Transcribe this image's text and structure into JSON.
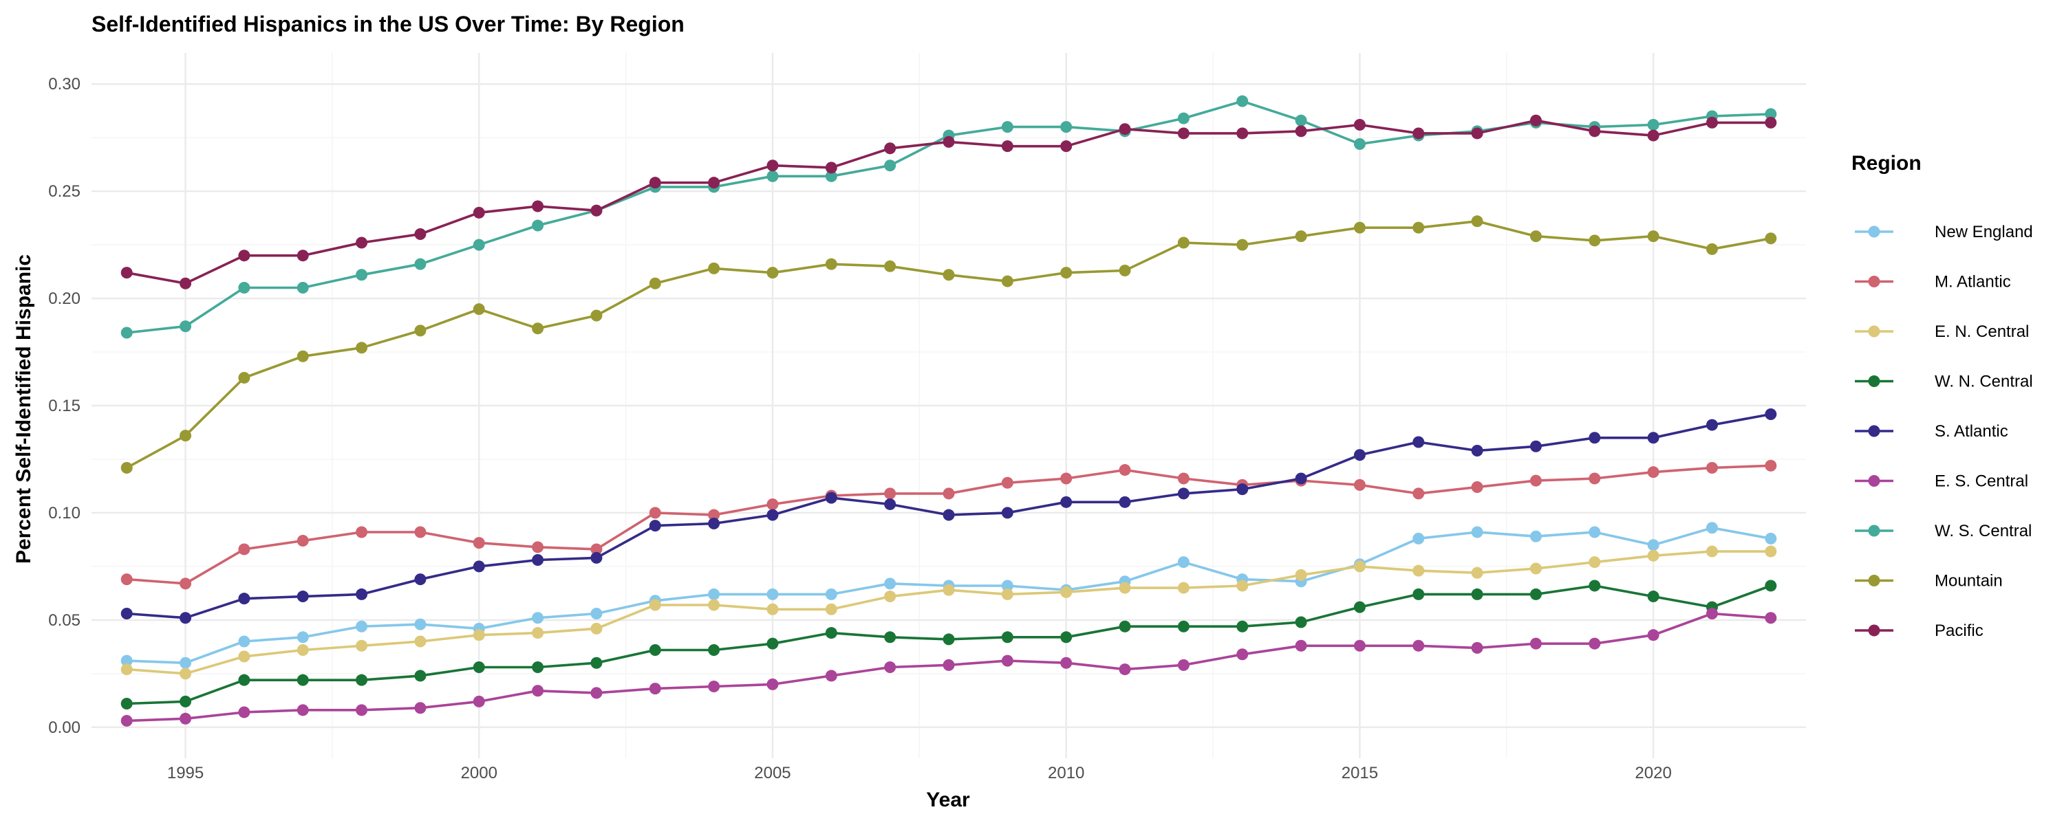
{
  "chart_data": {
    "type": "line",
    "title": "Self-Identified Hispanics in the US Over Time: By Region",
    "xlabel": "Year",
    "ylabel": "Percent Self-Identified Hispanic",
    "xlim": [
      1993.4,
      2022.6
    ],
    "ylim": [
      -0.0145,
      0.3145
    ],
    "x_ticks": [
      1995,
      2000,
      2005,
      2010,
      2015,
      2020
    ],
    "y_ticks": [
      0.0,
      0.05,
      0.1,
      0.15,
      0.2,
      0.25,
      0.3
    ],
    "y_tick_labels": [
      "0.00",
      "0.05",
      "0.10",
      "0.15",
      "0.20",
      "0.25",
      "0.30"
    ],
    "grid": true,
    "legend": {
      "title": "Region",
      "position": "right"
    },
    "x": [
      1994,
      1995,
      1996,
      1997,
      1998,
      1999,
      2000,
      2001,
      2002,
      2003,
      2004,
      2005,
      2006,
      2007,
      2008,
      2009,
      2010,
      2011,
      2012,
      2013,
      2014,
      2015,
      2016,
      2017,
      2018,
      2019,
      2020,
      2021,
      2022
    ],
    "series": [
      {
        "name": "New England",
        "color": "#85C7EA",
        "values": [
          0.031,
          0.03,
          0.04,
          0.042,
          0.047,
          0.048,
          0.046,
          0.051,
          0.053,
          0.059,
          0.062,
          0.062,
          0.062,
          0.067,
          0.066,
          0.066,
          0.064,
          0.068,
          0.077,
          0.069,
          0.068,
          0.076,
          0.088,
          0.091,
          0.089,
          0.091,
          0.085,
          0.093,
          0.088
        ]
      },
      {
        "name": "M. Atlantic",
        "color": "#CF6370",
        "values": [
          0.069,
          0.067,
          0.083,
          0.087,
          0.091,
          0.091,
          0.086,
          0.084,
          0.083,
          0.1,
          0.099,
          0.104,
          0.108,
          0.109,
          0.109,
          0.114,
          0.116,
          0.12,
          0.116,
          0.113,
          0.115,
          0.113,
          0.109,
          0.112,
          0.115,
          0.116,
          0.119,
          0.121,
          0.122
        ]
      },
      {
        "name": "E. N. Central",
        "color": "#DCC878",
        "values": [
          0.027,
          0.025,
          0.033,
          0.036,
          0.038,
          0.04,
          0.043,
          0.044,
          0.046,
          0.057,
          0.057,
          0.055,
          0.055,
          0.061,
          0.064,
          0.062,
          0.063,
          0.065,
          0.065,
          0.066,
          0.071,
          0.075,
          0.073,
          0.072,
          0.074,
          0.077,
          0.08,
          0.082,
          0.082
        ]
      },
      {
        "name": "W. N. Central",
        "color": "#197536",
        "values": [
          0.011,
          0.012,
          0.022,
          0.022,
          0.022,
          0.024,
          0.028,
          0.028,
          0.03,
          0.036,
          0.036,
          0.039,
          0.044,
          0.042,
          0.041,
          0.042,
          0.042,
          0.047,
          0.047,
          0.047,
          0.049,
          0.056,
          0.062,
          0.062,
          0.062,
          0.066,
          0.061,
          0.056,
          0.066
        ]
      },
      {
        "name": "S. Atlantic",
        "color": "#342B88",
        "values": [
          0.053,
          0.051,
          0.06,
          0.061,
          0.062,
          0.069,
          0.075,
          0.078,
          0.079,
          0.094,
          0.095,
          0.099,
          0.107,
          0.104,
          0.099,
          0.1,
          0.105,
          0.105,
          0.109,
          0.111,
          0.116,
          0.127,
          0.133,
          0.129,
          0.131,
          0.135,
          0.135,
          0.141,
          0.146
        ]
      },
      {
        "name": "E. S. Central",
        "color": "#AA4499",
        "values": [
          0.003,
          0.004,
          0.007,
          0.008,
          0.008,
          0.009,
          0.012,
          0.017,
          0.016,
          0.018,
          0.019,
          0.02,
          0.024,
          0.028,
          0.029,
          0.031,
          0.03,
          0.027,
          0.029,
          0.034,
          0.038,
          0.038,
          0.038,
          0.037,
          0.039,
          0.039,
          0.043,
          0.053,
          0.051
        ]
      },
      {
        "name": "W. S. Central",
        "color": "#44AA99",
        "values": [
          0.184,
          0.187,
          0.205,
          0.205,
          0.211,
          0.216,
          0.225,
          0.234,
          0.241,
          0.252,
          0.252,
          0.257,
          0.257,
          0.262,
          0.276,
          0.28,
          0.28,
          0.278,
          0.284,
          0.292,
          0.283,
          0.272,
          0.276,
          0.278,
          0.282,
          0.28,
          0.281,
          0.285,
          0.286
        ]
      },
      {
        "name": "Mountain",
        "color": "#999933",
        "values": [
          0.121,
          0.136,
          0.163,
          0.173,
          0.177,
          0.185,
          0.195,
          0.186,
          0.192,
          0.207,
          0.214,
          0.212,
          0.216,
          0.215,
          0.211,
          0.208,
          0.212,
          0.213,
          0.226,
          0.225,
          0.229,
          0.233,
          0.233,
          0.236,
          0.229,
          0.227,
          0.229,
          0.223,
          0.228
        ]
      },
      {
        "name": "Pacific",
        "color": "#882255",
        "values": [
          0.212,
          0.207,
          0.22,
          0.22,
          0.226,
          0.23,
          0.24,
          0.243,
          0.241,
          0.254,
          0.254,
          0.262,
          0.261,
          0.27,
          0.273,
          0.271,
          0.271,
          0.279,
          0.277,
          0.277,
          0.278,
          0.281,
          0.277,
          0.277,
          0.283,
          0.278,
          0.276,
          0.282,
          0.282
        ]
      }
    ]
  }
}
